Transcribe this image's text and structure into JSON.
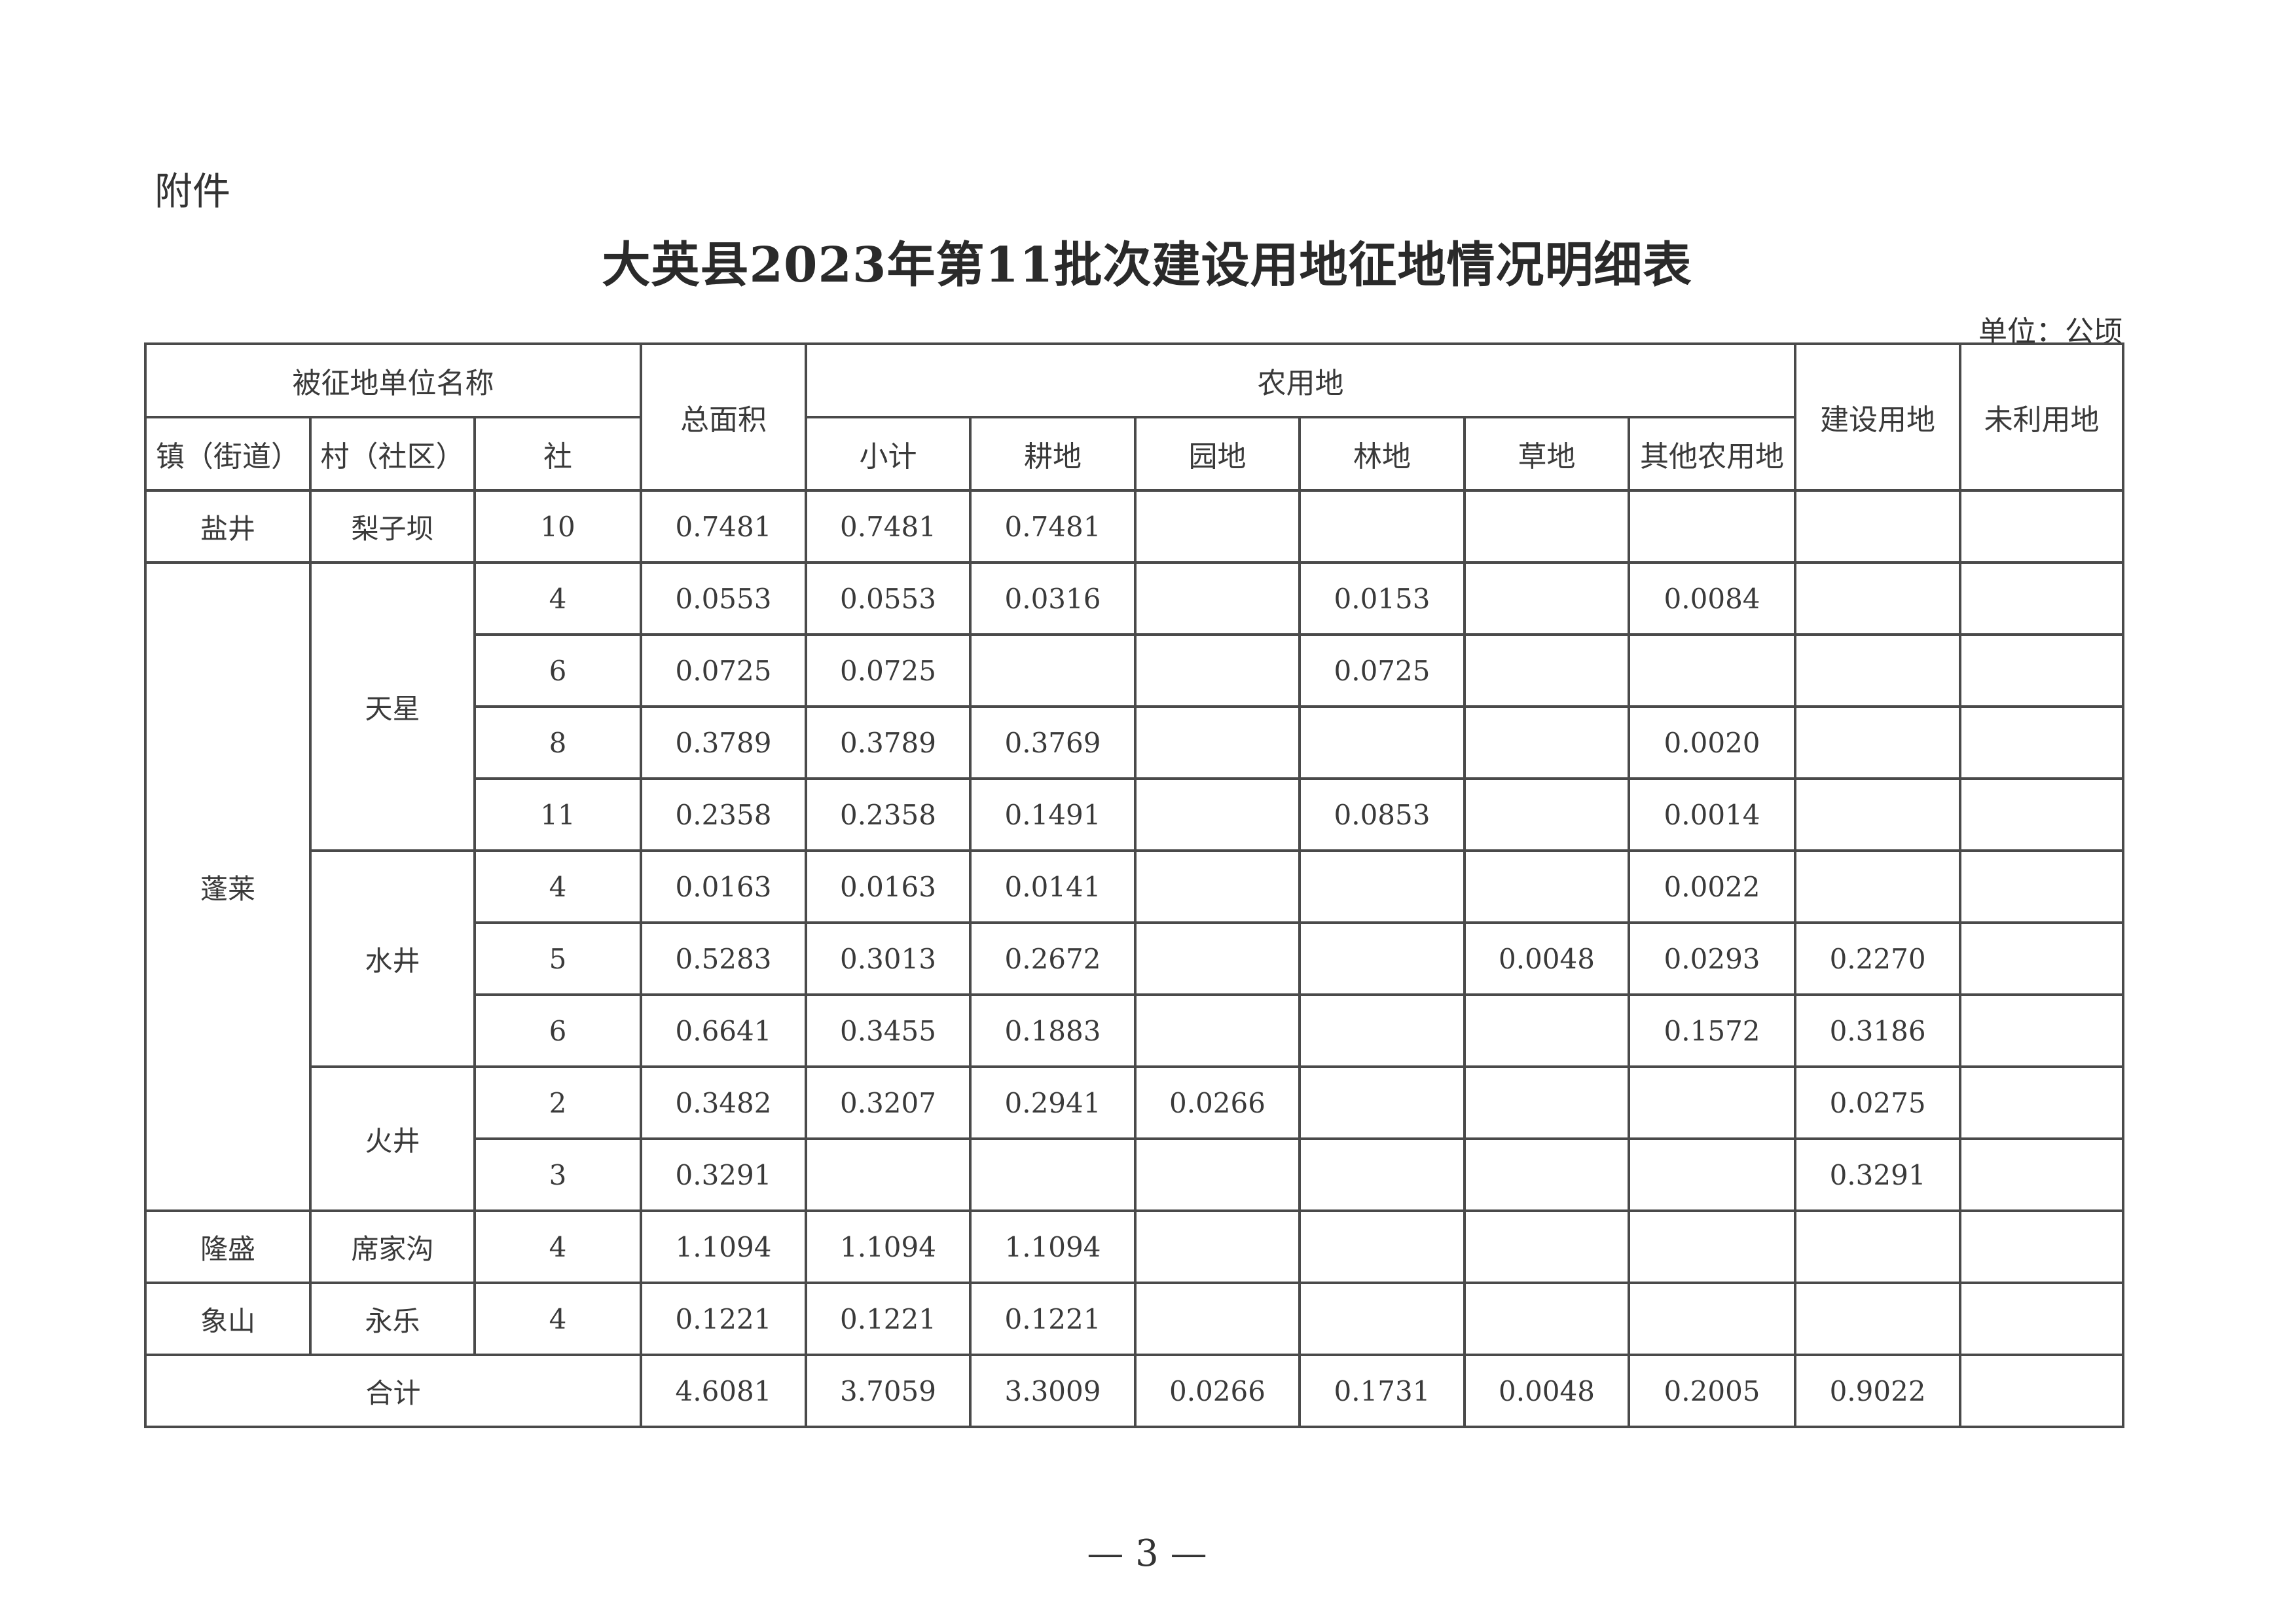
{
  "attachment_label": "附件",
  "title": "大英县2023年第11批次建设用地征地情况明细表",
  "unit": "单位：公顷",
  "headers": {
    "unit_name": "被征地单位名称",
    "town": "镇（街道）",
    "village": "村（社区）",
    "group": "社",
    "total": "总面积",
    "agri": "农用地",
    "subtotal": "小计",
    "cultivated": "耕地",
    "garden": "园地",
    "forest": "林地",
    "grass": "草地",
    "other_agri": "其他农用地",
    "construction": "建设用地",
    "unused": "未利用地"
  },
  "rows": [
    {
      "town": "盐井",
      "village": "梨子坝",
      "group": "10",
      "total": "0.7481",
      "subtotal": "0.7481",
      "cultivated": "0.7481",
      "garden": "",
      "forest": "",
      "grass": "",
      "other_agri": "",
      "construction": "",
      "unused": ""
    },
    {
      "town": "蓬莱",
      "village": "天星",
      "group": "4",
      "total": "0.0553",
      "subtotal": "0.0553",
      "cultivated": "0.0316",
      "garden": "",
      "forest": "0.0153",
      "grass": "",
      "other_agri": "0.0084",
      "construction": "",
      "unused": ""
    },
    {
      "town": "蓬莱",
      "village": "天星",
      "group": "6",
      "total": "0.0725",
      "subtotal": "0.0725",
      "cultivated": "",
      "garden": "",
      "forest": "0.0725",
      "grass": "",
      "other_agri": "",
      "construction": "",
      "unused": ""
    },
    {
      "town": "蓬莱",
      "village": "天星",
      "group": "8",
      "total": "0.3789",
      "subtotal": "0.3789",
      "cultivated": "0.3769",
      "garden": "",
      "forest": "",
      "grass": "",
      "other_agri": "0.0020",
      "construction": "",
      "unused": ""
    },
    {
      "town": "蓬莱",
      "village": "天星",
      "group": "11",
      "total": "0.2358",
      "subtotal": "0.2358",
      "cultivated": "0.1491",
      "garden": "",
      "forest": "0.0853",
      "grass": "",
      "other_agri": "0.0014",
      "construction": "",
      "unused": ""
    },
    {
      "town": "蓬莱",
      "village": "水井",
      "group": "4",
      "total": "0.0163",
      "subtotal": "0.0163",
      "cultivated": "0.0141",
      "garden": "",
      "forest": "",
      "grass": "",
      "other_agri": "0.0022",
      "construction": "",
      "unused": ""
    },
    {
      "town": "蓬莱",
      "village": "水井",
      "group": "5",
      "total": "0.5283",
      "subtotal": "0.3013",
      "cultivated": "0.2672",
      "garden": "",
      "forest": "",
      "grass": "0.0048",
      "other_agri": "0.0293",
      "construction": "0.2270",
      "unused": ""
    },
    {
      "town": "蓬莱",
      "village": "水井",
      "group": "6",
      "total": "0.6641",
      "subtotal": "0.3455",
      "cultivated": "0.1883",
      "garden": "",
      "forest": "",
      "grass": "",
      "other_agri": "0.1572",
      "construction": "0.3186",
      "unused": ""
    },
    {
      "town": "蓬莱",
      "village": "火井",
      "group": "2",
      "total": "0.3482",
      "subtotal": "0.3207",
      "cultivated": "0.2941",
      "garden": "0.0266",
      "forest": "",
      "grass": "",
      "other_agri": "",
      "construction": "0.0275",
      "unused": ""
    },
    {
      "town": "蓬莱",
      "village": "火井",
      "group": "3",
      "total": "0.3291",
      "subtotal": "",
      "cultivated": "",
      "garden": "",
      "forest": "",
      "grass": "",
      "other_agri": "",
      "construction": "0.3291",
      "unused": ""
    },
    {
      "town": "隆盛",
      "village": "席家沟",
      "group": "4",
      "total": "1.1094",
      "subtotal": "1.1094",
      "cultivated": "1.1094",
      "garden": "",
      "forest": "",
      "grass": "",
      "other_agri": "",
      "construction": "",
      "unused": ""
    },
    {
      "town": "象山",
      "village": "永乐",
      "group": "4",
      "total": "0.1221",
      "subtotal": "0.1221",
      "cultivated": "0.1221",
      "garden": "",
      "forest": "",
      "grass": "",
      "other_agri": "",
      "construction": "",
      "unused": ""
    }
  ],
  "totals": {
    "label": "合计",
    "total": "4.6081",
    "subtotal": "3.7059",
    "cultivated": "3.3009",
    "garden": "0.0266",
    "forest": "0.1731",
    "grass": "0.0048",
    "other_agri": "0.2005",
    "construction": "0.9022",
    "unused": ""
  },
  "page_number": "— 3 —"
}
